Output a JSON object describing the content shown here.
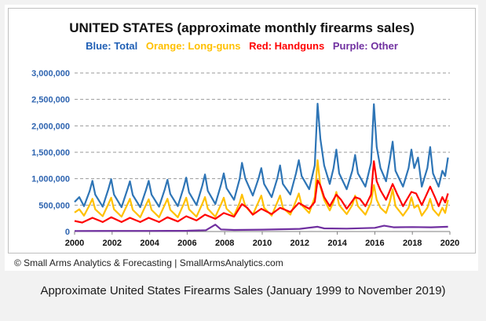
{
  "caption": "Approximate United States Firearms Sales (January 1999 to November 2019)",
  "credit": "© Small Arms Analytics & Forecasting | SmallArmsAnalytics.com",
  "chart_data": {
    "type": "line",
    "title": "UNITED STATES (approximate monthly firearms sales)",
    "legend_labels": [
      {
        "text": "Blue: Total",
        "color": "#1f5fb5"
      },
      {
        "text": "Orange: Long-guns",
        "color": "#ffc000"
      },
      {
        "text": "Red: Handguns",
        "color": "#ff0000"
      },
      {
        "text": "Purple: Other",
        "color": "#7030a0"
      }
    ],
    "xlabel": "",
    "ylabel": "",
    "xlim": [
      2000,
      2020
    ],
    "ylim": [
      0,
      3000000
    ],
    "x_ticks": [
      "2000",
      "2002",
      "2004",
      "2006",
      "2008",
      "2010",
      "2012",
      "2014",
      "2016",
      "2018",
      "2020"
    ],
    "y_ticks": [
      "0",
      "500,000",
      "1,000,000",
      "1,500,000",
      "2,000,000",
      "2,500,000",
      "3,000,000"
    ],
    "grid": "horizontal dashed",
    "series": [
      {
        "key": "total",
        "color": "#2e75b6",
        "points": [
          [
            2000.0,
            560000
          ],
          [
            2000.25,
            650000
          ],
          [
            2000.5,
            480000
          ],
          [
            2000.8,
            760000
          ],
          [
            2000.95,
            960000
          ],
          [
            2001.1,
            700000
          ],
          [
            2001.5,
            470000
          ],
          [
            2001.8,
            800000
          ],
          [
            2001.95,
            990000
          ],
          [
            2002.1,
            700000
          ],
          [
            2002.5,
            460000
          ],
          [
            2002.8,
            780000
          ],
          [
            2002.95,
            950000
          ],
          [
            2003.1,
            690000
          ],
          [
            2003.5,
            460000
          ],
          [
            2003.8,
            780000
          ],
          [
            2003.95,
            960000
          ],
          [
            2004.1,
            700000
          ],
          [
            2004.5,
            470000
          ],
          [
            2004.8,
            790000
          ],
          [
            2004.95,
            980000
          ],
          [
            2005.1,
            710000
          ],
          [
            2005.5,
            480000
          ],
          [
            2005.8,
            820000
          ],
          [
            2005.95,
            1020000
          ],
          [
            2006.1,
            740000
          ],
          [
            2006.5,
            500000
          ],
          [
            2006.8,
            860000
          ],
          [
            2006.95,
            1080000
          ],
          [
            2007.1,
            770000
          ],
          [
            2007.5,
            520000
          ],
          [
            2007.8,
            880000
          ],
          [
            2007.95,
            1100000
          ],
          [
            2008.1,
            820000
          ],
          [
            2008.5,
            600000
          ],
          [
            2008.8,
            1000000
          ],
          [
            2008.92,
            1300000
          ],
          [
            2009.1,
            1000000
          ],
          [
            2009.5,
            680000
          ],
          [
            2009.8,
            1000000
          ],
          [
            2009.95,
            1200000
          ],
          [
            2010.1,
            900000
          ],
          [
            2010.5,
            650000
          ],
          [
            2010.8,
            1000000
          ],
          [
            2010.95,
            1250000
          ],
          [
            2011.1,
            900000
          ],
          [
            2011.5,
            700000
          ],
          [
            2011.8,
            1100000
          ],
          [
            2011.95,
            1350000
          ],
          [
            2012.1,
            1050000
          ],
          [
            2012.5,
            800000
          ],
          [
            2012.8,
            1250000
          ],
          [
            2012.95,
            2420000
          ],
          [
            2013.1,
            1750000
          ],
          [
            2013.3,
            1250000
          ],
          [
            2013.6,
            900000
          ],
          [
            2013.8,
            1200000
          ],
          [
            2013.95,
            1550000
          ],
          [
            2014.1,
            1100000
          ],
          [
            2014.5,
            800000
          ],
          [
            2014.8,
            1150000
          ],
          [
            2014.95,
            1450000
          ],
          [
            2015.1,
            1100000
          ],
          [
            2015.5,
            850000
          ],
          [
            2015.8,
            1300000
          ],
          [
            2015.95,
            2410000
          ],
          [
            2016.1,
            1600000
          ],
          [
            2016.3,
            1200000
          ],
          [
            2016.6,
            950000
          ],
          [
            2016.8,
            1350000
          ],
          [
            2016.95,
            1700000
          ],
          [
            2017.1,
            1150000
          ],
          [
            2017.5,
            850000
          ],
          [
            2017.8,
            1200000
          ],
          [
            2017.95,
            1550000
          ],
          [
            2018.1,
            1200000
          ],
          [
            2018.3,
            1400000
          ],
          [
            2018.5,
            850000
          ],
          [
            2018.8,
            1200000
          ],
          [
            2018.95,
            1600000
          ],
          [
            2019.1,
            1100000
          ],
          [
            2019.4,
            850000
          ],
          [
            2019.6,
            1150000
          ],
          [
            2019.75,
            1050000
          ],
          [
            2019.9,
            1400000
          ]
        ]
      },
      {
        "key": "long_guns",
        "color": "#ffc000",
        "points": [
          [
            2000.0,
            360000
          ],
          [
            2000.25,
            420000
          ],
          [
            2000.5,
            300000
          ],
          [
            2000.8,
            500000
          ],
          [
            2000.95,
            620000
          ],
          [
            2001.1,
            420000
          ],
          [
            2001.5,
            290000
          ],
          [
            2001.8,
            520000
          ],
          [
            2001.95,
            640000
          ],
          [
            2002.1,
            420000
          ],
          [
            2002.5,
            280000
          ],
          [
            2002.8,
            500000
          ],
          [
            2002.95,
            620000
          ],
          [
            2003.1,
            410000
          ],
          [
            2003.5,
            270000
          ],
          [
            2003.8,
            500000
          ],
          [
            2003.95,
            610000
          ],
          [
            2004.1,
            410000
          ],
          [
            2004.5,
            270000
          ],
          [
            2004.8,
            500000
          ],
          [
            2004.95,
            620000
          ],
          [
            2005.1,
            410000
          ],
          [
            2005.5,
            270000
          ],
          [
            2005.8,
            510000
          ],
          [
            2005.95,
            640000
          ],
          [
            2006.1,
            420000
          ],
          [
            2006.5,
            280000
          ],
          [
            2006.8,
            520000
          ],
          [
            2006.95,
            650000
          ],
          [
            2007.1,
            430000
          ],
          [
            2007.5,
            280000
          ],
          [
            2007.8,
            510000
          ],
          [
            2007.95,
            640000
          ],
          [
            2008.1,
            430000
          ],
          [
            2008.5,
            300000
          ],
          [
            2008.8,
            550000
          ],
          [
            2008.92,
            700000
          ],
          [
            2009.1,
            480000
          ],
          [
            2009.5,
            320000
          ],
          [
            2009.8,
            560000
          ],
          [
            2009.95,
            680000
          ],
          [
            2010.1,
            450000
          ],
          [
            2010.5,
            300000
          ],
          [
            2010.8,
            550000
          ],
          [
            2010.95,
            680000
          ],
          [
            2011.1,
            450000
          ],
          [
            2011.5,
            320000
          ],
          [
            2011.8,
            580000
          ],
          [
            2011.95,
            720000
          ],
          [
            2012.1,
            500000
          ],
          [
            2012.5,
            350000
          ],
          [
            2012.8,
            650000
          ],
          [
            2012.95,
            1350000
          ],
          [
            2013.1,
            850000
          ],
          [
            2013.3,
            600000
          ],
          [
            2013.6,
            400000
          ],
          [
            2013.8,
            560000
          ],
          [
            2013.95,
            750000
          ],
          [
            2014.1,
            500000
          ],
          [
            2014.5,
            330000
          ],
          [
            2014.8,
            500000
          ],
          [
            2014.95,
            680000
          ],
          [
            2015.1,
            480000
          ],
          [
            2015.5,
            320000
          ],
          [
            2015.8,
            550000
          ],
          [
            2015.95,
            880000
          ],
          [
            2016.1,
            600000
          ],
          [
            2016.3,
            450000
          ],
          [
            2016.6,
            350000
          ],
          [
            2016.8,
            560000
          ],
          [
            2016.95,
            800000
          ],
          [
            2017.1,
            480000
          ],
          [
            2017.5,
            300000
          ],
          [
            2017.8,
            450000
          ],
          [
            2017.95,
            650000
          ],
          [
            2018.1,
            450000
          ],
          [
            2018.3,
            500000
          ],
          [
            2018.5,
            300000
          ],
          [
            2018.8,
            450000
          ],
          [
            2018.95,
            620000
          ],
          [
            2019.1,
            420000
          ],
          [
            2019.4,
            300000
          ],
          [
            2019.6,
            450000
          ],
          [
            2019.75,
            350000
          ],
          [
            2019.9,
            600000
          ]
        ]
      },
      {
        "key": "handguns",
        "color": "#ff0000",
        "points": [
          [
            2000.0,
            200000
          ],
          [
            2000.4,
            170000
          ],
          [
            2000.95,
            260000
          ],
          [
            2001.5,
            180000
          ],
          [
            2001.95,
            270000
          ],
          [
            2002.5,
            180000
          ],
          [
            2002.95,
            260000
          ],
          [
            2003.5,
            180000
          ],
          [
            2003.95,
            260000
          ],
          [
            2004.5,
            180000
          ],
          [
            2004.95,
            270000
          ],
          [
            2005.5,
            190000
          ],
          [
            2005.95,
            290000
          ],
          [
            2006.5,
            210000
          ],
          [
            2006.95,
            320000
          ],
          [
            2007.5,
            240000
          ],
          [
            2007.95,
            350000
          ],
          [
            2008.5,
            280000
          ],
          [
            2008.92,
            520000
          ],
          [
            2009.2,
            450000
          ],
          [
            2009.5,
            320000
          ],
          [
            2009.95,
            430000
          ],
          [
            2010.5,
            330000
          ],
          [
            2010.95,
            450000
          ],
          [
            2011.5,
            370000
          ],
          [
            2011.95,
            540000
          ],
          [
            2012.5,
            430000
          ],
          [
            2012.8,
            560000
          ],
          [
            2012.95,
            970000
          ],
          [
            2013.1,
            870000
          ],
          [
            2013.3,
            650000
          ],
          [
            2013.6,
            480000
          ],
          [
            2013.95,
            700000
          ],
          [
            2014.2,
            600000
          ],
          [
            2014.5,
            430000
          ],
          [
            2014.95,
            650000
          ],
          [
            2015.2,
            620000
          ],
          [
            2015.5,
            480000
          ],
          [
            2015.8,
            700000
          ],
          [
            2015.95,
            1330000
          ],
          [
            2016.1,
            950000
          ],
          [
            2016.3,
            780000
          ],
          [
            2016.6,
            600000
          ],
          [
            2016.95,
            900000
          ],
          [
            2017.2,
            700000
          ],
          [
            2017.5,
            480000
          ],
          [
            2017.95,
            750000
          ],
          [
            2018.2,
            720000
          ],
          [
            2018.5,
            500000
          ],
          [
            2018.95,
            850000
          ],
          [
            2019.2,
            650000
          ],
          [
            2019.4,
            480000
          ],
          [
            2019.6,
            650000
          ],
          [
            2019.75,
            550000
          ],
          [
            2019.9,
            720000
          ]
        ]
      },
      {
        "key": "other",
        "color": "#7030a0",
        "points": [
          [
            2000.0,
            10000
          ],
          [
            2002.0,
            12000
          ],
          [
            2004.0,
            12000
          ],
          [
            2006.0,
            15000
          ],
          [
            2007.0,
            25000
          ],
          [
            2007.5,
            130000
          ],
          [
            2007.8,
            40000
          ],
          [
            2008.5,
            30000
          ],
          [
            2010.0,
            35000
          ],
          [
            2012.0,
            50000
          ],
          [
            2012.95,
            90000
          ],
          [
            2013.3,
            60000
          ],
          [
            2014.5,
            55000
          ],
          [
            2016.0,
            70000
          ],
          [
            2016.5,
            110000
          ],
          [
            2017.0,
            80000
          ],
          [
            2018.0,
            85000
          ],
          [
            2019.0,
            80000
          ],
          [
            2019.9,
            90000
          ]
        ]
      }
    ]
  }
}
